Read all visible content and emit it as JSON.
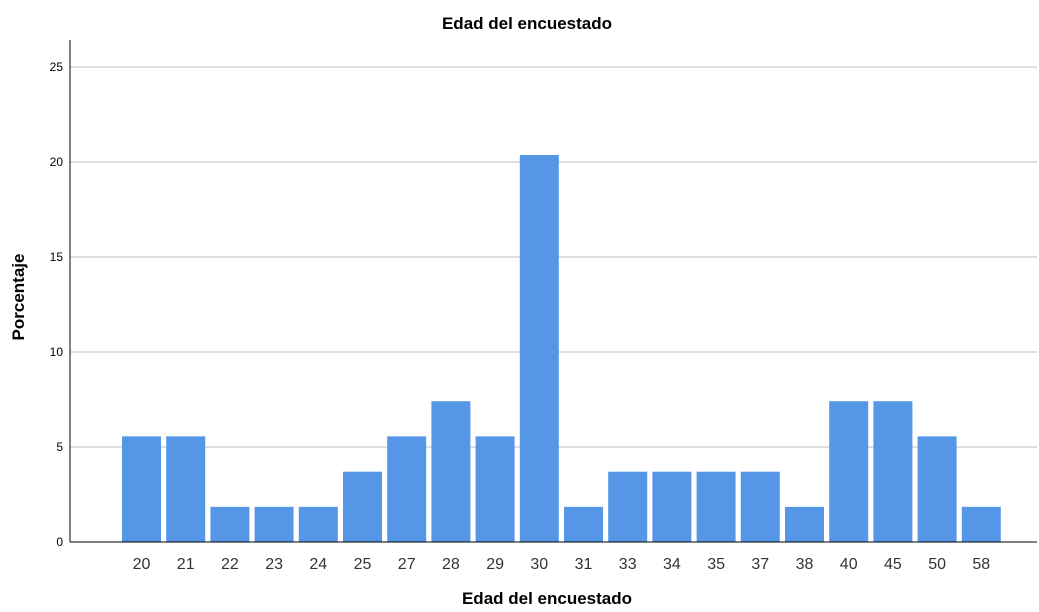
{
  "chart_data": {
    "type": "bar",
    "title": "Edad del encuestado",
    "xlabel": "Edad del encuestado",
    "ylabel": "Porcentaje",
    "ylim": [
      0,
      25
    ],
    "yticks": [
      "0",
      "5",
      "10",
      "15",
      "20",
      "25"
    ],
    "grid": true,
    "categories": [
      "20",
      "21",
      "22",
      "23",
      "24",
      "25",
      "27",
      "28",
      "29",
      "30",
      "31",
      "33",
      "34",
      "35",
      "37",
      "38",
      "40",
      "45",
      "50",
      "58"
    ],
    "values": [
      5.56,
      5.56,
      1.85,
      1.85,
      1.85,
      3.7,
      5.56,
      7.41,
      5.56,
      20.37,
      1.85,
      3.7,
      3.7,
      3.7,
      3.7,
      1.85,
      7.41,
      7.41,
      5.56,
      1.85
    ],
    "colors": {
      "bar": "#5596e6",
      "grid": "#d3d3d3",
      "axis": "#000000"
    }
  }
}
